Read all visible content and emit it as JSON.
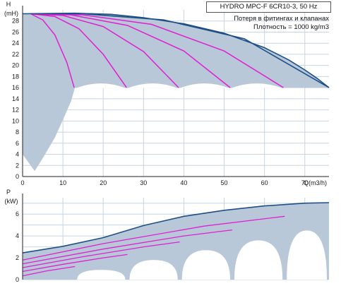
{
  "header": {
    "model": "HYDRO MPC-F 6CR10-3, 50 Hz",
    "note1": "Потеря в фитингах и клапанах",
    "note2": "Плотность = 1000 kg/m3"
  },
  "colors": {
    "envelope_fill": "#b8c8d8",
    "envelope_line": "#1d4f86",
    "curve_line": "#e020d0",
    "grid": "#c6d5e4",
    "axis": "#222222"
  },
  "chart_data": [
    {
      "id": "head",
      "type": "line",
      "ylabel_top": "H",
      "ylabel_unit": "(mH)",
      "xlabel": "Q(m3/h)",
      "xlim": [
        0,
        76
      ],
      "ylim": [
        0,
        30
      ],
      "xticks": [
        0,
        10,
        20,
        30,
        40,
        50,
        60,
        70
      ],
      "yticks": [
        0,
        2,
        4,
        6,
        8,
        10,
        12,
        14,
        16,
        18,
        20,
        22,
        24,
        26,
        28
      ],
      "grid": true,
      "envelope": {
        "x": [
          0,
          13,
          22,
          30,
          40,
          50,
          60,
          66,
          70,
          73,
          76
        ],
        "y": [
          29.3,
          29.4,
          29.2,
          28.6,
          27.5,
          25.8,
          23.2,
          21.0,
          19.2,
          17.7,
          16.0
        ],
        "bottom_y": 16.0,
        "lower_left": {
          "x": [
            0,
            2,
            3,
            5,
            8,
            10,
            12,
            13
          ],
          "y": [
            4.0,
            2.0,
            1.0,
            3.3,
            7.0,
            10.2,
            13.5,
            16.0
          ]
        }
      },
      "series": [
        {
          "x": [
            2.0,
            5.0,
            8.0,
            11.0,
            12.8
          ],
          "y": [
            29.3,
            28.2,
            25.5,
            20.5,
            16.0
          ]
        },
        {
          "x": [
            2.0,
            8.0,
            14.0,
            20.0,
            25.8
          ],
          "y": [
            29.3,
            28.8,
            26.6,
            22.0,
            16.0
          ]
        },
        {
          "x": [
            2.0,
            10.0,
            20.0,
            30.0,
            38.7
          ],
          "y": [
            29.3,
            29.0,
            27.0,
            22.5,
            16.0
          ]
        },
        {
          "x": [
            2.0,
            12.0,
            26.0,
            40.0,
            51.5
          ],
          "y": [
            29.3,
            29.1,
            27.2,
            22.6,
            16.0
          ]
        },
        {
          "x": [
            2.0,
            15.0,
            32.0,
            50.0,
            64.7
          ],
          "y": [
            29.3,
            29.1,
            27.4,
            22.6,
            16.0
          ]
        },
        {
          "x": [
            2.0,
            15.0,
            35.0,
            55.0,
            76.0
          ],
          "y": [
            29.3,
            29.3,
            28.2,
            24.8,
            16.0
          ]
        }
      ]
    },
    {
      "id": "power",
      "type": "line",
      "ylabel_top": "P",
      "ylabel_unit": "(kW)",
      "xlim": [
        0,
        76
      ],
      "ylim": [
        0,
        7.5
      ],
      "yticks": [
        0,
        2,
        4,
        6
      ],
      "grid": true,
      "envelope": {
        "x": [
          0,
          10,
          20,
          30,
          40,
          50,
          60,
          70,
          76
        ],
        "top": [
          2.45,
          3.05,
          3.85,
          4.95,
          5.8,
          6.35,
          6.75,
          7.0,
          7.05
        ],
        "bottom": [
          0.0,
          0.0,
          0.0,
          0.0,
          0.0,
          0.0,
          0.0,
          0.0,
          0.0
        ]
      },
      "series": [
        {
          "x": [
            0,
            6,
            13
          ],
          "y": [
            0.35,
            0.8,
            1.2
          ]
        },
        {
          "x": [
            0,
            10,
            20,
            26
          ],
          "y": [
            0.75,
            1.4,
            2.0,
            2.3
          ]
        },
        {
          "x": [
            0,
            15,
            30,
            39
          ],
          "y": [
            1.1,
            2.1,
            3.0,
            3.45
          ]
        },
        {
          "x": [
            0,
            20,
            40,
            52
          ],
          "y": [
            1.45,
            2.8,
            4.0,
            4.55
          ]
        },
        {
          "x": [
            0,
            20,
            45,
            65
          ],
          "y": [
            1.8,
            3.3,
            4.9,
            5.8
          ]
        },
        {
          "x": [
            0,
            10,
            20,
            30,
            40,
            50,
            60,
            70,
            76
          ],
          "y": [
            2.45,
            3.05,
            3.85,
            4.95,
            5.8,
            6.35,
            6.75,
            7.0,
            7.05
          ]
        }
      ]
    }
  ]
}
